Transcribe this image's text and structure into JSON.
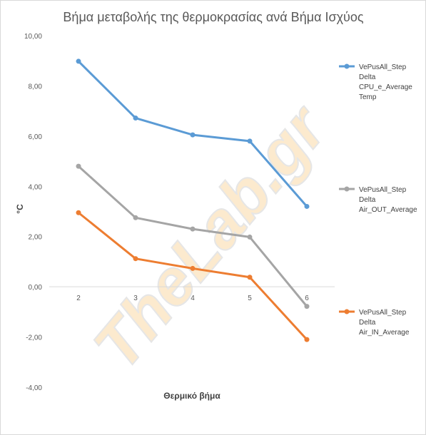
{
  "chart_data": {
    "type": "line",
    "title": "Βήμα μεταβολής της θερμοκρασίας ανά Βήμα Ισχύος",
    "xlabel": "Θερμικό βήμα",
    "ylabel": "°C",
    "categories": [
      "2",
      "3",
      "4",
      "5",
      "6"
    ],
    "ylim": [
      -4,
      10
    ],
    "yticks": [
      "10,00",
      "8,00",
      "6,00",
      "4,00",
      "2,00",
      "0,00",
      "-2,00",
      "-4,00"
    ],
    "grid": false,
    "legend_position": "right",
    "series": [
      {
        "name": "VePusAll_Step Delta CPU_e_Average Temp",
        "legend_lines": [
          "VePusAll_Step",
          "Delta",
          "CPU_e_Average",
          "Temp"
        ],
        "color": "#5b9bd5",
        "values": [
          8.98,
          6.72,
          6.05,
          5.8,
          3.2
        ]
      },
      {
        "name": "VePusAll_Step Delta Air_OUT_Average",
        "legend_lines": [
          "VePusAll_Step",
          "Delta",
          "Air_OUT_Average"
        ],
        "color": "#a5a5a5",
        "values": [
          4.8,
          2.75,
          2.3,
          1.98,
          -0.78
        ]
      },
      {
        "name": "VePusAll_Step Delta Air_IN_Average",
        "legend_lines": [
          "VePusAll_Step",
          "Delta",
          "Air_IN_Average"
        ],
        "color": "#ed7d31",
        "values": [
          2.95,
          1.12,
          0.73,
          0.38,
          -2.1
        ]
      }
    ],
    "watermark": {
      "text": "TheLab.gr",
      "color": "#f9d9a6",
      "stroke": "#e6e6e6"
    }
  }
}
